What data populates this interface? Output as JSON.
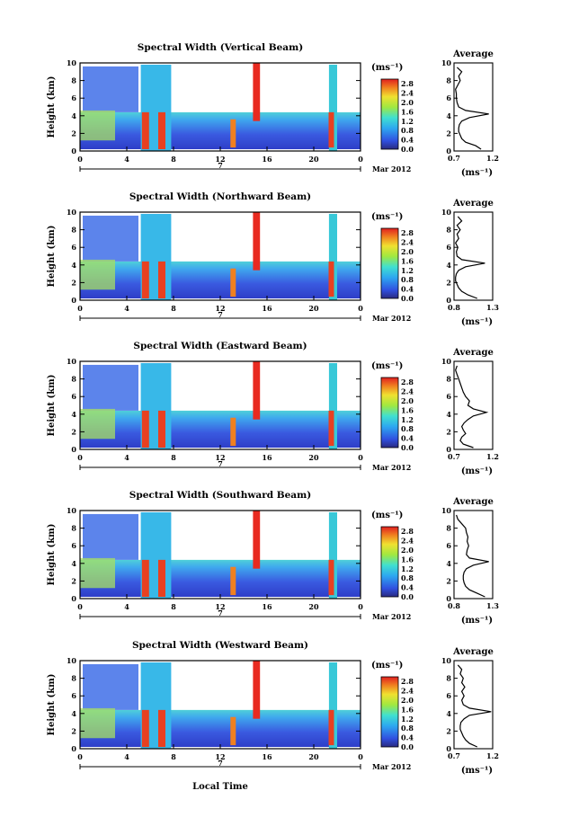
{
  "chart_data": {
    "type": "heatmap",
    "colorbar": {
      "unit": "(ms⁻¹)",
      "ticks": [
        "2.8",
        "2.4",
        "2.0",
        "1.6",
        "1.2",
        "0.8",
        "0.4",
        "0.0"
      ],
      "range": [
        0.0,
        3.0
      ]
    },
    "x_axis": {
      "ticks": [
        "0",
        "4",
        "8",
        "12",
        "16",
        "20",
        "0"
      ],
      "range": [
        0,
        24
      ],
      "day_label": "7",
      "month_label": "Mar 2012",
      "xlabel": "Local Time"
    },
    "y_axis": {
      "ylabel": "Height (km)",
      "ticks": [
        "0",
        "2",
        "4",
        "6",
        "8",
        "10"
      ],
      "range": [
        0,
        10
      ]
    },
    "profile_title": "Average",
    "profile_unit": "(ms⁻¹)",
    "panels": [
      {
        "title": "Spectral Width (Vertical Beam)",
        "profile_xticks": [
          "0.7",
          "1.2"
        ],
        "profile_xlim": [
          0.7,
          1.2
        ],
        "profile_heights": [
          0.2,
          0.6,
          1.0,
          1.4,
          1.8,
          2.2,
          2.6,
          3.0,
          3.4,
          3.8,
          4.2,
          4.6,
          5.0,
          5.5,
          6.0,
          6.5,
          7.0,
          7.5,
          8.0,
          8.5,
          9.0,
          9.5
        ],
        "profile_values": [
          1.05,
          0.98,
          0.85,
          0.8,
          0.78,
          0.76,
          0.76,
          0.77,
          0.8,
          0.9,
          1.15,
          0.85,
          0.76,
          0.74,
          0.73,
          0.73,
          0.72,
          0.75,
          0.78,
          0.76,
          0.8,
          0.74
        ]
      },
      {
        "title": "Spectral Width (Northward Beam)",
        "profile_xticks": [
          "0.8",
          "1.3"
        ],
        "profile_xlim": [
          0.8,
          1.3
        ],
        "profile_heights": [
          0.2,
          0.6,
          1.0,
          1.4,
          1.8,
          2.2,
          2.6,
          3.0,
          3.4,
          3.8,
          4.2,
          4.6,
          5.0,
          5.5,
          6.0,
          6.5,
          7.0,
          7.5,
          8.0,
          8.5,
          9.0,
          9.5
        ],
        "profile_values": [
          1.1,
          0.98,
          0.9,
          0.86,
          0.84,
          0.82,
          0.82,
          0.83,
          0.86,
          0.95,
          1.2,
          0.9,
          0.84,
          0.83,
          0.85,
          0.82,
          0.86,
          0.84,
          0.88,
          0.84,
          0.9,
          0.85
        ]
      },
      {
        "title": "Spectral Width (Eastward Beam)",
        "profile_xticks": [
          "0.7",
          "1.2"
        ],
        "profile_xlim": [
          0.7,
          1.2
        ],
        "profile_heights": [
          0.2,
          0.6,
          1.0,
          1.4,
          1.8,
          2.2,
          2.6,
          3.0,
          3.4,
          3.8,
          4.2,
          4.6,
          5.0,
          5.5,
          6.0,
          6.5,
          7.0,
          7.5,
          8.0,
          8.5,
          9.0,
          9.5
        ],
        "profile_values": [
          0.95,
          0.82,
          0.78,
          0.8,
          0.85,
          0.82,
          0.8,
          0.83,
          0.88,
          0.95,
          1.12,
          0.95,
          0.88,
          0.9,
          0.85,
          0.82,
          0.8,
          0.78,
          0.76,
          0.74,
          0.72,
          0.74
        ]
      },
      {
        "title": "Spectral Width (Southward Beam)",
        "profile_xticks": [
          "0.8",
          "1.3"
        ],
        "profile_xlim": [
          0.8,
          1.3
        ],
        "profile_heights": [
          0.2,
          0.6,
          1.0,
          1.4,
          1.8,
          2.2,
          2.6,
          3.0,
          3.4,
          3.8,
          4.2,
          4.6,
          5.0,
          5.5,
          6.0,
          6.5,
          7.0,
          7.5,
          8.0,
          8.5,
          9.0,
          9.5
        ],
        "profile_values": [
          1.2,
          1.1,
          1.0,
          0.95,
          0.93,
          0.92,
          0.92,
          0.93,
          0.96,
          1.05,
          1.25,
          1.0,
          0.96,
          0.97,
          0.99,
          0.97,
          0.98,
          0.96,
          0.95,
          0.9,
          0.85,
          0.83
        ]
      },
      {
        "title": "Spectral Width (Westward Beam)",
        "profile_xticks": [
          "0.7",
          "1.2"
        ],
        "profile_xlim": [
          0.7,
          1.2
        ],
        "profile_heights": [
          0.2,
          0.6,
          1.0,
          1.4,
          1.8,
          2.2,
          2.6,
          3.0,
          3.4,
          3.8,
          4.2,
          4.6,
          5.0,
          5.5,
          6.0,
          6.5,
          7.0,
          7.5,
          8.0,
          8.5,
          9.0,
          9.5
        ],
        "profile_values": [
          1.0,
          0.9,
          0.85,
          0.82,
          0.8,
          0.78,
          0.78,
          0.79,
          0.83,
          0.9,
          1.18,
          0.9,
          0.82,
          0.8,
          0.83,
          0.8,
          0.84,
          0.8,
          0.82,
          0.78,
          0.8,
          0.75
        ]
      }
    ]
  }
}
